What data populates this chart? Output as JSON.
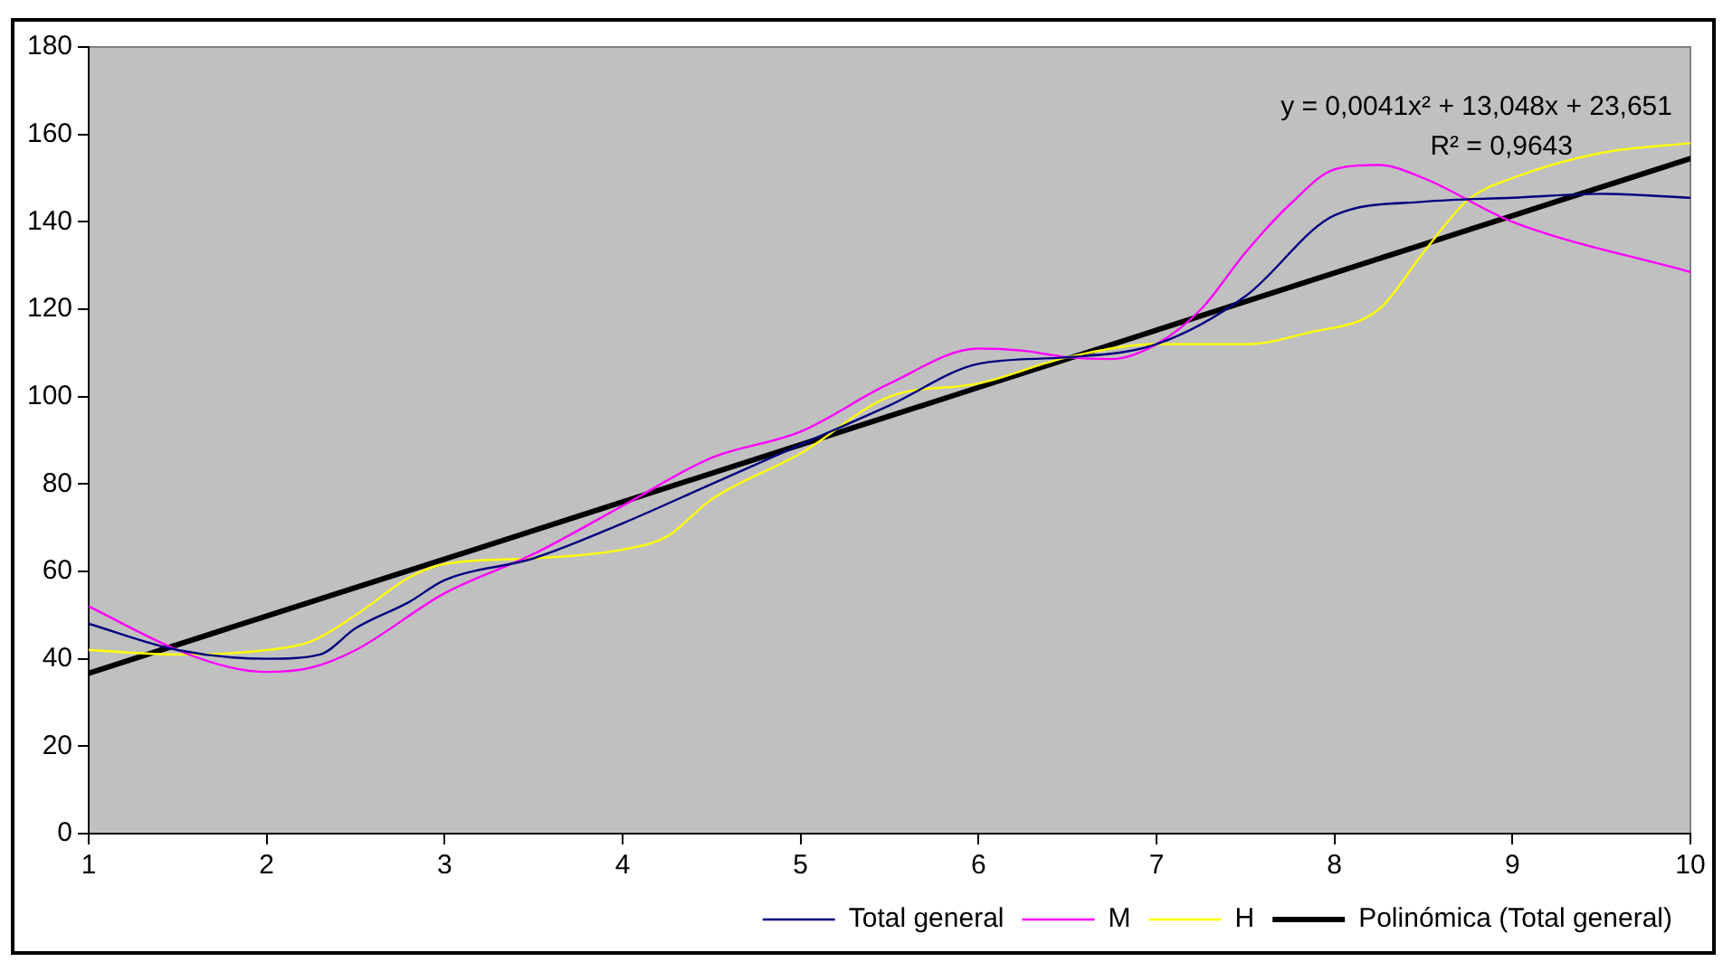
{
  "chart_data": {
    "type": "line",
    "xlim": [
      1,
      10
    ],
    "xticks": [
      1,
      2,
      3,
      4,
      5,
      6,
      7,
      8,
      9,
      10
    ],
    "ylim": [
      0,
      180
    ],
    "yticks": [
      0,
      20,
      40,
      60,
      80,
      100,
      120,
      140,
      160,
      180
    ],
    "grid": false,
    "legend": "bottom right",
    "marker": "none",
    "line_style": "solid",
    "annotations": [
      "y = 0,0041x² + 13,048x + 23,651",
      "R² = 0,9643"
    ],
    "series": [
      {
        "name": "Total general",
        "color": "#000080",
        "x": [
          1,
          1.5,
          2,
          2.3,
          2.5,
          2.8,
          3,
          3.5,
          4,
          4.5,
          5,
          5.5,
          6,
          6.5,
          7,
          7.5,
          8,
          8.5,
          9,
          9.5,
          10
        ],
        "values": [
          48,
          42,
          40,
          41,
          47,
          53,
          58,
          63,
          71,
          80,
          89,
          98,
          107.5,
          109,
          112,
          123,
          141.5,
          144.6,
          145.5,
          146.4,
          145.5
        ]
      },
      {
        "name": "M",
        "color": "#ff00ff",
        "x": [
          1,
          1.5,
          1.8,
          2,
          2.25,
          2.5,
          3,
          3.5,
          4,
          4.5,
          5,
          5.5,
          6,
          6.25,
          6.5,
          6.75,
          7,
          7.25,
          7.5,
          7.75,
          8,
          8.25,
          8.5,
          9,
          10
        ],
        "values": [
          52,
          42,
          38,
          37,
          38,
          42,
          55,
          64,
          75,
          86,
          92,
          103,
          111,
          110.5,
          109,
          108.6,
          112,
          120,
          133,
          144,
          152,
          153,
          150,
          140,
          128.5
        ]
      },
      {
        "name": "H",
        "color": "#ffff00",
        "x": [
          1,
          1.5,
          2,
          2.25,
          2.5,
          2.8,
          3,
          3.5,
          4,
          4.25,
          4.5,
          5,
          5.5,
          6,
          6.5,
          7,
          7.5,
          7.85,
          8.25,
          8.5,
          8.75,
          9,
          9.5,
          10
        ],
        "values": [
          42,
          41,
          42,
          44,
          50,
          58.6,
          61.7,
          63,
          65,
          68,
          76.5,
          87,
          100,
          103,
          109,
          112,
          112,
          114.6,
          120,
          133,
          145,
          150,
          155.8,
          158
        ]
      },
      {
        "name": "Polinómica (Total general)",
        "color": "#000000",
        "x": [
          1,
          2,
          3,
          4,
          5,
          6,
          7,
          8,
          9,
          10
        ],
        "values": [
          36.7,
          49.8,
          62.8,
          75.9,
          89,
          102.1,
          115.2,
          128.3,
          141.4,
          154.5
        ]
      }
    ]
  }
}
